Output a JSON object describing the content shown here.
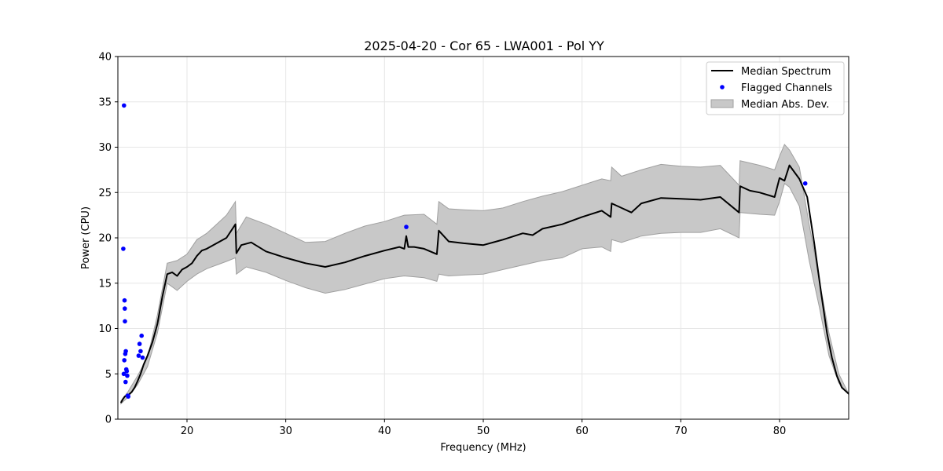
{
  "chart_data": {
    "type": "line",
    "title": "2025-04-20 - Cor 65 - LWA001 - Pol YY",
    "xlabel": "Frequency (MHz)",
    "ylabel": "Power (CPU)",
    "xlim": [
      13,
      87
    ],
    "ylim": [
      0,
      40
    ],
    "xticks": [
      20,
      30,
      40,
      50,
      60,
      70,
      80
    ],
    "yticks": [
      0,
      5,
      10,
      15,
      20,
      25,
      30,
      35,
      40
    ],
    "grid": true,
    "legend_position": "top-right",
    "colors": {
      "median": "#000000",
      "flagged": "#0000ff",
      "mad_fill": "#c8c8c8",
      "mad_edge": "#a0a0a0",
      "grid": "#e6e6e6"
    },
    "series": [
      {
        "name": "Median Spectrum",
        "kind": "line",
        "x": [
          13.3,
          13.5,
          13.7,
          13.9,
          14.1,
          14.4,
          14.7,
          15.0,
          15.3,
          15.6,
          16.0,
          16.5,
          17.0,
          17.5,
          18.0,
          18.5,
          19.0,
          19.5,
          20.0,
          20.5,
          21.0,
          21.5,
          22.0,
          23.0,
          24.0,
          24.9,
          25.0,
          25.5,
          26.5,
          28.0,
          30.0,
          32.0,
          34.0,
          36.0,
          38.0,
          40.0,
          41.5,
          42.0,
          42.2,
          42.4,
          43.0,
          44.0,
          45.3,
          45.5,
          46.5,
          48.0,
          50.0,
          52.0,
          54.0,
          55.0,
          56.0,
          58.0,
          60.0,
          62.0,
          62.9,
          63.0,
          64.0,
          65.0,
          66.0,
          68.0,
          70.0,
          72.0,
          74.0,
          75.9,
          76.0,
          77.0,
          78.0,
          79.5,
          80.0,
          80.5,
          81.0,
          82.0,
          82.8,
          83.5,
          84.2,
          84.8,
          85.3,
          85.8,
          86.3,
          87.0
        ],
        "y": [
          1.8,
          2.2,
          2.5,
          2.6,
          2.7,
          3.0,
          3.5,
          4.2,
          5.0,
          6.0,
          7.0,
          8.5,
          10.5,
          13.5,
          16.0,
          16.2,
          15.8,
          16.5,
          16.8,
          17.2,
          18.0,
          18.6,
          18.8,
          19.4,
          20.0,
          21.5,
          18.3,
          19.2,
          19.5,
          18.5,
          17.8,
          17.2,
          16.8,
          17.3,
          18.0,
          18.6,
          19.0,
          18.8,
          20.2,
          19.0,
          19.0,
          18.8,
          18.2,
          20.8,
          19.6,
          19.4,
          19.2,
          19.8,
          20.5,
          20.3,
          21.0,
          21.5,
          22.3,
          23.0,
          22.3,
          23.8,
          23.3,
          22.8,
          23.8,
          24.4,
          24.3,
          24.2,
          24.5,
          22.8,
          25.7,
          25.2,
          25.0,
          24.5,
          26.6,
          26.3,
          28.0,
          26.5,
          24.5,
          19.5,
          14.0,
          9.5,
          6.8,
          4.8,
          3.5,
          2.8
        ]
      },
      {
        "name": "Flagged Channels",
        "kind": "scatter",
        "x": [
          13.55,
          13.62,
          13.68,
          13.7,
          13.75,
          13.8,
          13.85,
          13.9,
          13.95,
          14.0,
          14.05,
          13.72,
          13.78,
          13.6,
          13.65,
          15.1,
          15.2,
          15.3,
          15.4,
          15.5,
          42.2,
          82.6
        ],
        "y": [
          18.8,
          34.6,
          13.1,
          12.2,
          7.2,
          7.5,
          5.5,
          5.3,
          4.8,
          2.6,
          2.5,
          10.8,
          4.1,
          5.0,
          6.5,
          7.0,
          8.3,
          7.5,
          9.2,
          6.8,
          21.2,
          26.0
        ]
      },
      {
        "name": "Median Abs. Dev.",
        "kind": "band",
        "x": [
          13.3,
          14.0,
          15.0,
          16.0,
          17.0,
          18.0,
          19.0,
          20.0,
          21.0,
          22.0,
          23.0,
          24.0,
          24.9,
          25.0,
          26.0,
          28.0,
          30.0,
          32.0,
          34.0,
          36.0,
          38.0,
          40.0,
          42.0,
          44.0,
          45.3,
          45.5,
          46.5,
          48.0,
          50.0,
          52.0,
          54.0,
          56.0,
          58.0,
          60.0,
          62.0,
          62.9,
          63.0,
          64.0,
          66.0,
          68.0,
          70.0,
          72.0,
          74.0,
          75.9,
          76.0,
          78.0,
          79.5,
          80.0,
          80.5,
          81.0,
          82.0,
          83.0,
          84.0,
          85.0,
          86.0,
          87.0
        ],
        "lower": [
          1.7,
          2.4,
          3.8,
          5.8,
          9.5,
          15.0,
          14.2,
          15.2,
          16.0,
          16.6,
          17.0,
          17.4,
          17.8,
          16.0,
          16.8,
          16.2,
          15.3,
          14.5,
          13.9,
          14.3,
          14.9,
          15.5,
          15.8,
          15.6,
          15.2,
          16.0,
          15.8,
          15.9,
          16.0,
          16.5,
          17.0,
          17.5,
          17.8,
          18.8,
          19.0,
          18.5,
          19.8,
          19.5,
          20.2,
          20.5,
          20.6,
          20.6,
          21.0,
          20.0,
          22.8,
          22.6,
          22.5,
          24.0,
          26.0,
          25.6,
          23.5,
          17.5,
          12.5,
          7.0,
          4.0,
          2.7
        ],
        "upper": [
          2.0,
          3.0,
          4.8,
          6.8,
          11.5,
          17.2,
          17.5,
          18.2,
          19.8,
          20.5,
          21.5,
          22.5,
          24.0,
          20.5,
          22.3,
          21.5,
          20.5,
          19.5,
          19.6,
          20.5,
          21.3,
          21.8,
          22.5,
          22.6,
          21.5,
          24.0,
          23.2,
          23.1,
          23.0,
          23.3,
          24.0,
          24.6,
          25.1,
          25.8,
          26.5,
          26.3,
          27.8,
          26.8,
          27.5,
          28.1,
          27.9,
          27.8,
          28.0,
          25.8,
          28.5,
          28.0,
          27.5,
          29.0,
          30.3,
          29.7,
          27.8,
          21.5,
          15.5,
          9.5,
          5.0,
          2.8
        ]
      }
    ],
    "legend": [
      {
        "label": "Median Spectrum",
        "marker": "line"
      },
      {
        "label": "Flagged Channels",
        "marker": "dot"
      },
      {
        "label": "Median Abs. Dev.",
        "marker": "patch"
      }
    ]
  }
}
